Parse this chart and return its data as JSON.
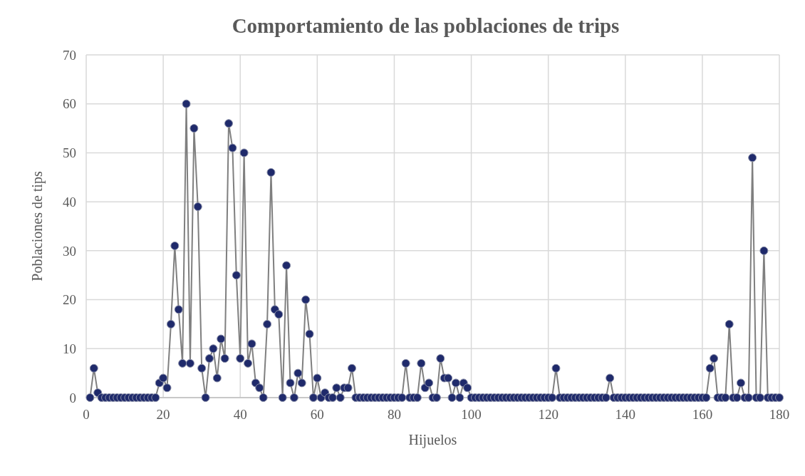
{
  "chart_data": {
    "type": "line",
    "title": "Comportamiento de las poblaciones de trips",
    "xlabel": "Hijuelos",
    "ylabel": "Poblaciones de tips",
    "x": [
      1,
      2,
      3,
      4,
      5,
      6,
      7,
      8,
      9,
      10,
      11,
      12,
      13,
      14,
      15,
      16,
      17,
      18,
      19,
      20,
      21,
      22,
      23,
      24,
      25,
      26,
      27,
      28,
      29,
      30,
      31,
      32,
      33,
      34,
      35,
      36,
      37,
      38,
      39,
      40,
      41,
      42,
      43,
      44,
      45,
      46,
      47,
      48,
      49,
      50,
      51,
      52,
      53,
      54,
      55,
      56,
      57,
      58,
      59,
      60,
      61,
      62,
      63,
      64,
      65,
      66,
      67,
      68,
      69,
      70,
      71,
      72,
      73,
      74,
      75,
      76,
      77,
      78,
      79,
      80,
      81,
      82,
      83,
      84,
      85,
      86,
      87,
      88,
      89,
      90,
      91,
      92,
      93,
      94,
      95,
      96,
      97,
      98,
      99,
      100,
      101,
      102,
      103,
      104,
      105,
      106,
      107,
      108,
      109,
      110,
      111,
      112,
      113,
      114,
      115,
      116,
      117,
      118,
      119,
      120,
      121,
      122,
      123,
      124,
      125,
      126,
      127,
      128,
      129,
      130,
      131,
      132,
      133,
      134,
      135,
      136,
      137,
      138,
      139,
      140,
      141,
      142,
      143,
      144,
      145,
      146,
      147,
      148,
      149,
      150,
      151,
      152,
      153,
      154,
      155,
      156,
      157,
      158,
      159,
      160,
      161,
      162,
      163,
      164,
      165,
      166,
      167,
      168,
      169,
      170,
      171,
      172,
      173,
      174,
      175,
      176,
      177,
      178,
      179,
      180
    ],
    "series": [
      {
        "color": "#1f2a6b",
        "values": [
          0,
          6,
          1,
          0,
          0,
          0,
          0,
          0,
          0,
          0,
          0,
          0,
          0,
          0,
          0,
          0,
          0,
          0,
          3,
          4,
          2,
          15,
          31,
          18,
          7,
          60,
          7,
          55,
          39,
          6,
          0,
          8,
          10,
          4,
          12,
          8,
          56,
          51,
          25,
          8,
          50,
          7,
          11,
          3,
          2,
          0,
          15,
          46,
          18,
          17,
          0,
          27,
          3,
          0,
          5,
          3,
          20,
          13,
          0,
          4,
          0,
          1,
          0,
          0,
          2,
          0,
          2,
          2,
          6,
          0,
          0,
          0,
          0,
          0,
          0,
          0,
          0,
          0,
          0,
          0,
          0,
          0,
          7,
          0,
          0,
          0,
          7,
          2,
          3,
          0,
          0,
          8,
          4,
          4,
          0,
          3,
          0,
          3,
          2,
          0,
          0,
          0,
          0,
          0,
          0,
          0,
          0,
          0,
          0,
          0,
          0,
          0,
          0,
          0,
          0,
          0,
          0,
          0,
          0,
          0,
          0,
          6,
          0,
          0,
          0,
          0,
          0,
          0,
          0,
          0,
          0,
          0,
          0,
          0,
          0,
          4,
          0,
          0,
          0,
          0,
          0,
          0,
          0,
          0,
          0,
          0,
          0,
          0,
          0,
          0,
          0,
          0,
          0,
          0,
          0,
          0,
          0,
          0,
          0,
          0,
          0,
          6,
          8,
          0,
          0,
          0,
          15,
          0,
          0,
          3,
          0,
          0,
          49,
          0,
          0,
          30,
          0,
          0,
          0,
          0
        ]
      }
    ],
    "xlim": [
      0,
      180
    ],
    "xticks": [
      0,
      20,
      40,
      60,
      80,
      100,
      120,
      140,
      160,
      180
    ],
    "ylim": [
      0,
      70
    ],
    "yticks": [
      0,
      10,
      20,
      30,
      40,
      50,
      60,
      70
    ],
    "grid": true,
    "marker": "circle",
    "line_style": "solid"
  }
}
